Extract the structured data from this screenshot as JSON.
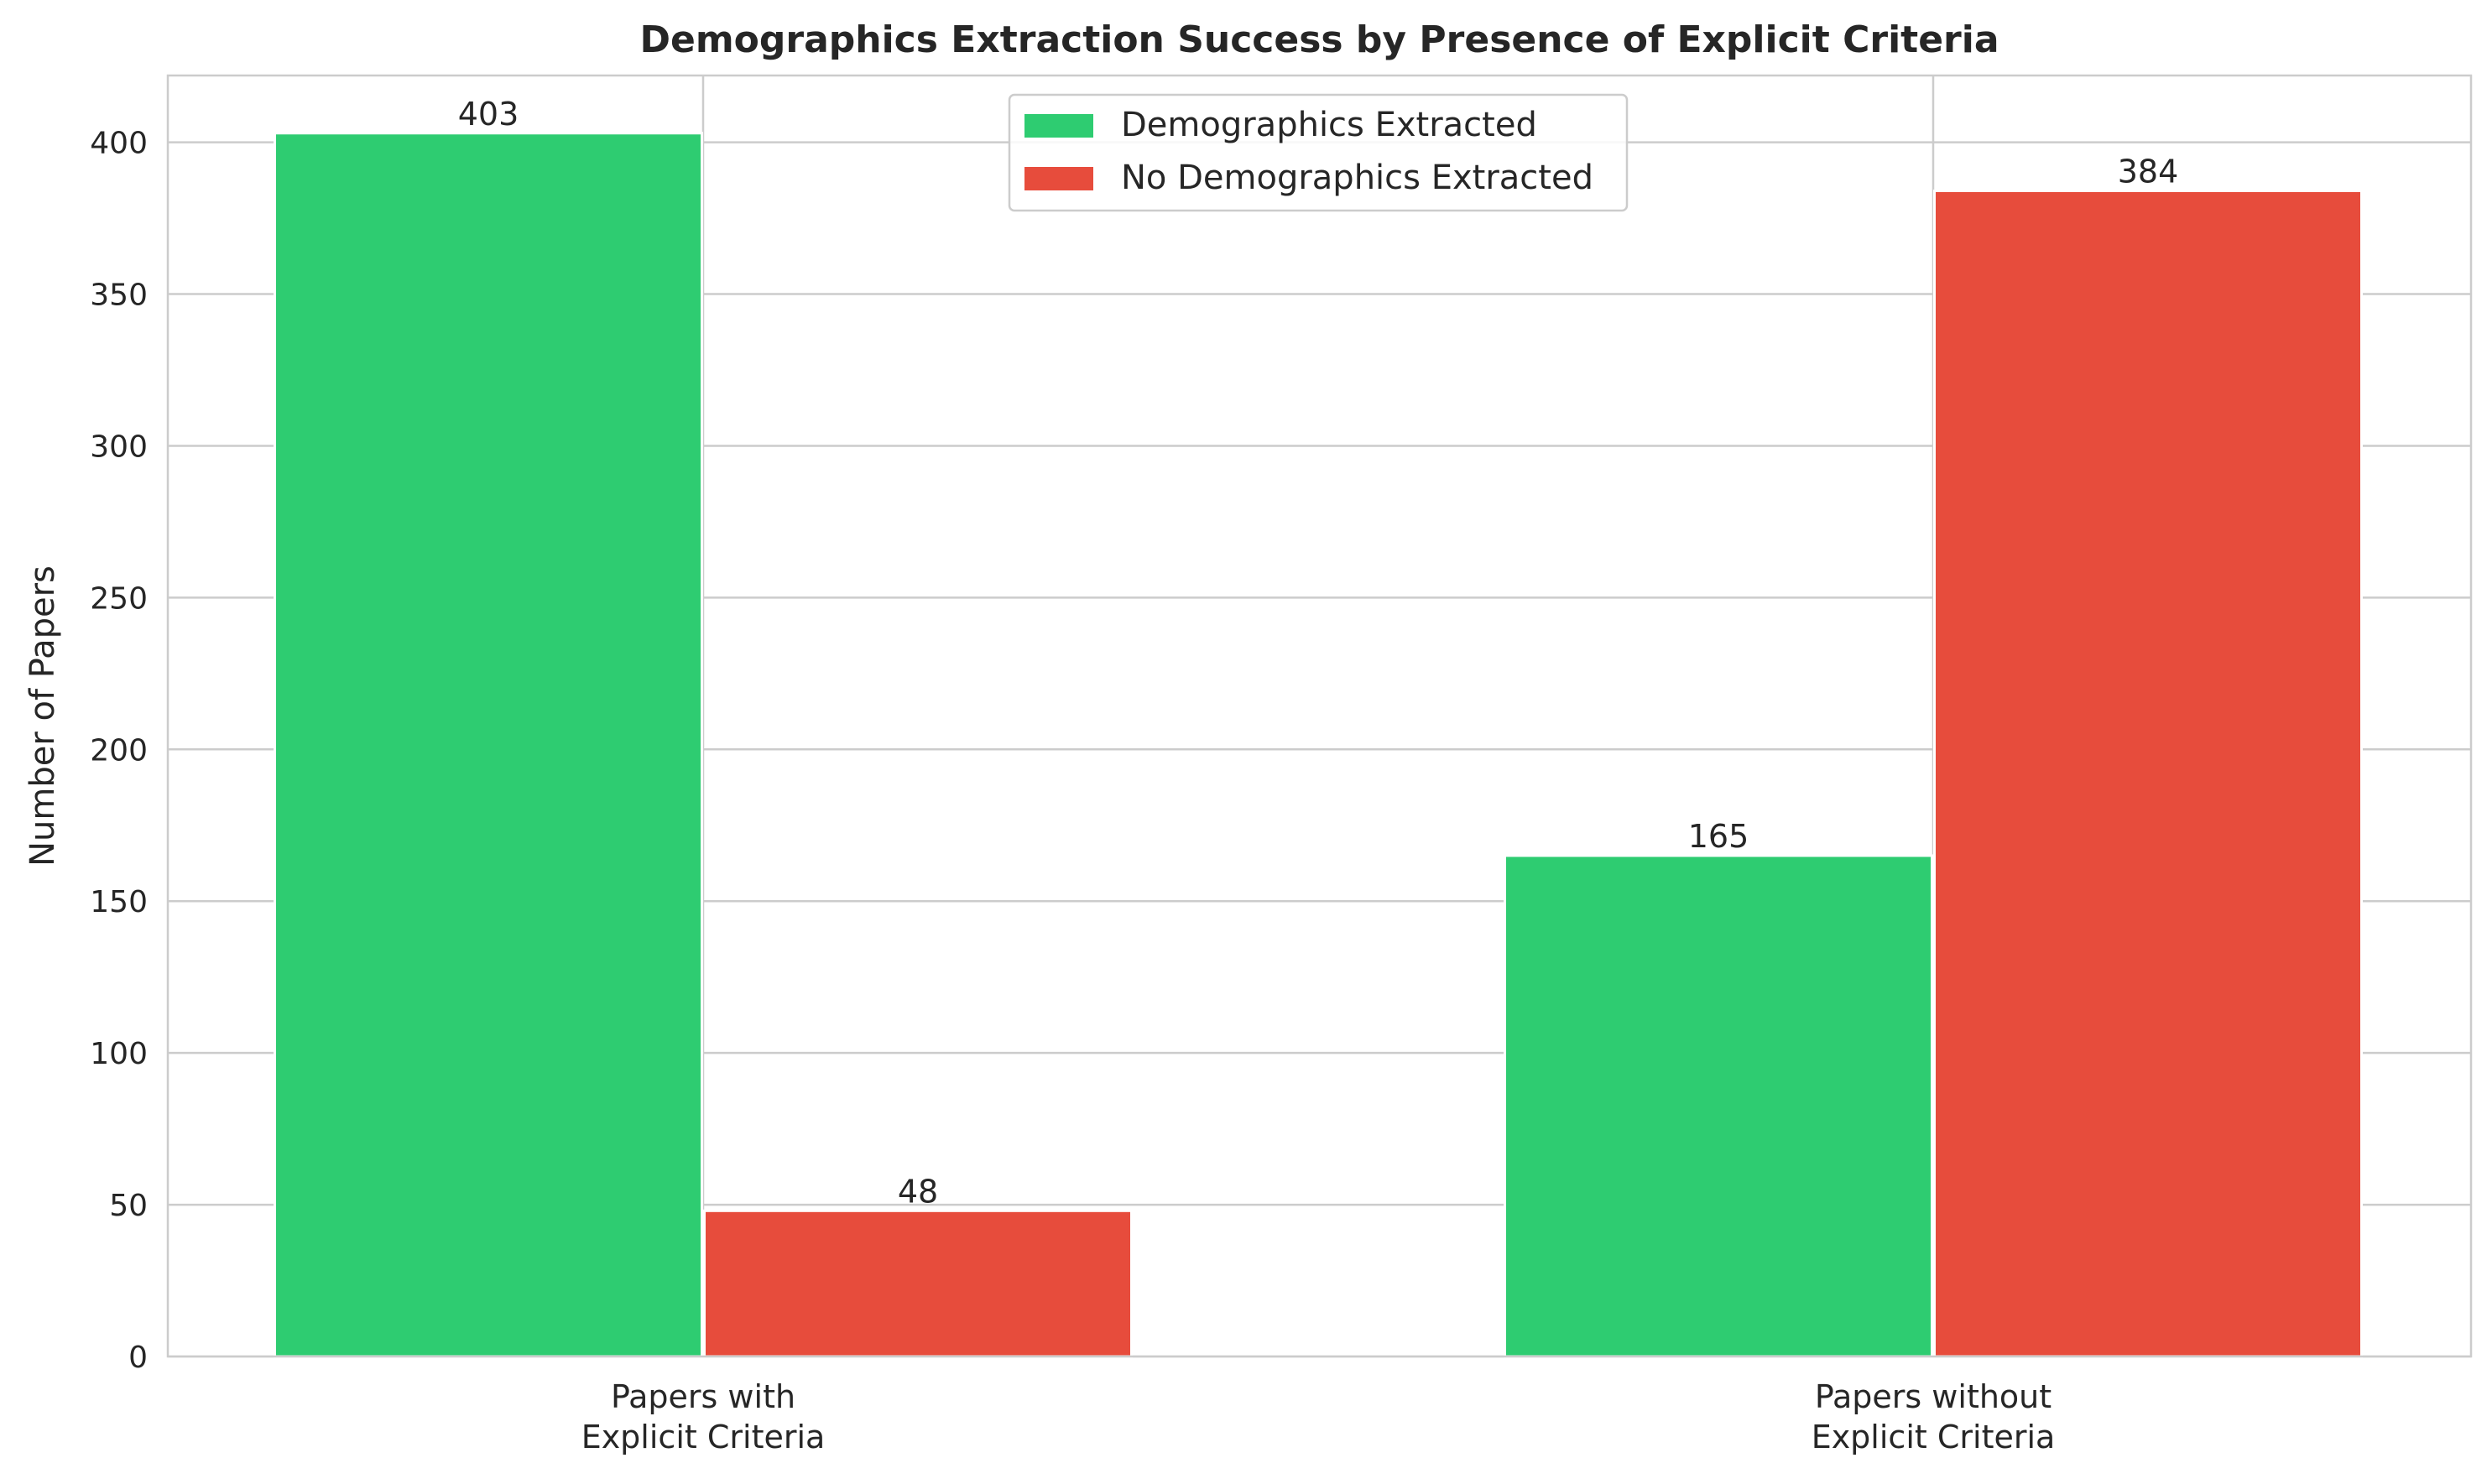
{
  "chart_data": {
    "type": "bar",
    "title": "Demographics Extraction Success by Presence of Explicit Criteria",
    "xlabel": "",
    "ylabel": "Number of Papers",
    "categories": [
      [
        "Papers with",
        "Explicit Criteria"
      ],
      [
        "Papers without",
        "Explicit Criteria"
      ]
    ],
    "series": [
      {
        "name": "Demographics Extracted",
        "values": [
          403,
          165
        ],
        "color": "#2ecc71"
      },
      {
        "name": "No Demographics Extracted",
        "values": [
          48,
          384
        ],
        "color": "#e74c3c"
      }
    ],
    "ylim": [
      0,
      422
    ],
    "yticks": [
      0,
      50,
      100,
      150,
      200,
      250,
      300,
      350,
      400
    ],
    "grid": true,
    "legend": "upper center"
  }
}
